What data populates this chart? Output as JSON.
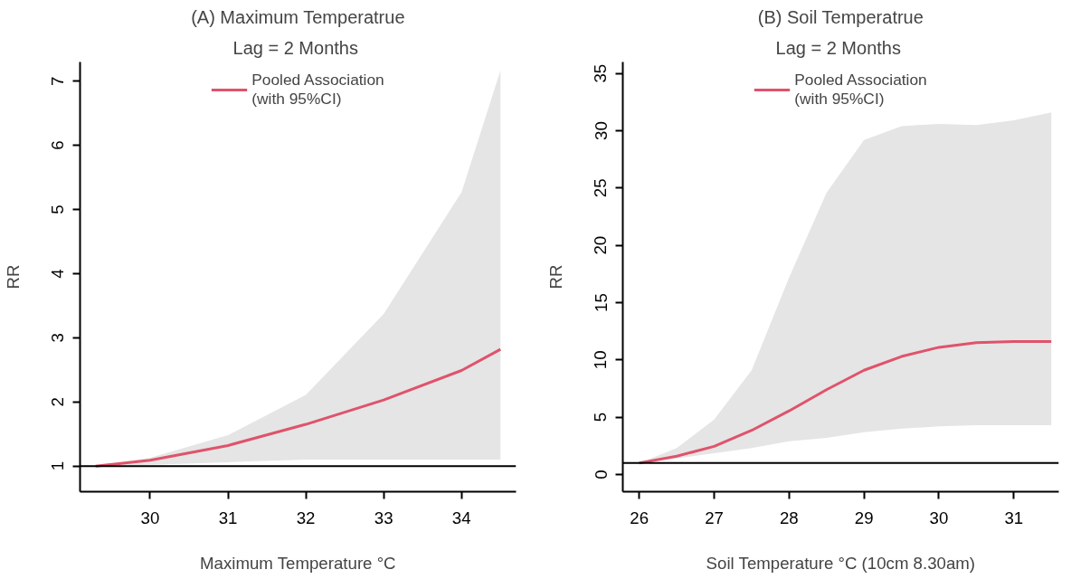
{
  "chart_data": [
    {
      "type": "line",
      "title": "(A) Maximum Temperatrue",
      "subtitle": "Lag =  2 Months",
      "xlabel": "Maximum Temperature °C",
      "ylabel": "RR",
      "xlim": [
        29.1,
        34.7
      ],
      "ylim": [
        0.6,
        7.3
      ],
      "xticks": [
        30,
        31,
        32,
        33,
        34
      ],
      "yticks": [
        1,
        2,
        3,
        4,
        5,
        6,
        7
      ],
      "series": [
        {
          "name": "Pooled Association\n(with 95%CI)",
          "color": "#df536b",
          "x": [
            29.3,
            30,
            31,
            32,
            33,
            34,
            34.5
          ],
          "values": [
            1.0,
            1.09,
            1.32,
            1.65,
            2.03,
            2.49,
            2.82
          ],
          "lower": [
            1.0,
            1.02,
            1.06,
            1.1,
            1.1,
            1.1,
            1.1
          ],
          "upper": [
            1.0,
            1.13,
            1.48,
            2.11,
            3.37,
            5.27,
            7.17
          ]
        }
      ],
      "ref_lines": [
        {
          "axis": "y",
          "value": 1,
          "color": "#000000"
        }
      ],
      "legend": "top",
      "grid": false,
      "marker": "none",
      "line_style": "solid"
    },
    {
      "type": "line",
      "title": "(B) Soil Temperatrue",
      "subtitle": "Lag =  2 Months",
      "xlabel": "Soil Temperature °C (10cm 8.30am)",
      "ylabel": "RR",
      "xlim": [
        25.78,
        31.6
      ],
      "ylim": [
        -1.5,
        36
      ],
      "xticks": [
        26,
        27,
        28,
        29,
        30,
        31
      ],
      "yticks": [
        0,
        5,
        10,
        15,
        20,
        25,
        30,
        35
      ],
      "series": [
        {
          "name": "Pooled Association\n(with 95%CI)",
          "color": "#df536b",
          "x": [
            26,
            26.5,
            27,
            27.5,
            28,
            28.5,
            29,
            29.5,
            30,
            30.5,
            31,
            31.5
          ],
          "values": [
            1.0,
            1.6,
            2.46,
            3.85,
            5.55,
            7.4,
            9.1,
            10.3,
            11.1,
            11.5,
            11.6,
            11.6
          ],
          "lower": [
            1.0,
            1.4,
            1.85,
            2.3,
            2.9,
            3.2,
            3.7,
            4.0,
            4.2,
            4.3,
            4.3,
            4.3
          ],
          "upper": [
            1.0,
            2.3,
            4.8,
            9.1,
            17.2,
            24.6,
            29.2,
            30.4,
            30.6,
            30.5,
            30.9,
            31.6
          ]
        }
      ],
      "ref_lines": [
        {
          "axis": "y",
          "value": 1,
          "color": "#000000"
        }
      ],
      "legend": "top",
      "grid": false,
      "marker": "none",
      "line_style": "solid"
    }
  ]
}
